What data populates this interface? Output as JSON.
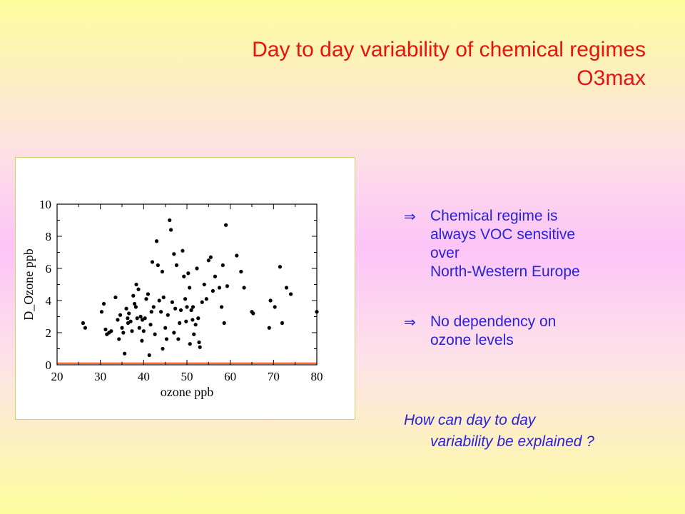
{
  "slide": {
    "title_line1": "Day to day variability of chemical regimes",
    "title_line2": "O3max",
    "bullets": [
      {
        "icon": "implies-arrow",
        "symbol": "⇒",
        "line1": "Chemical regime is",
        "lines": [
          "always VOC sensitive",
          "over",
          "North-Western Europe"
        ]
      },
      {
        "icon": "implies-arrow",
        "symbol": "⇒",
        "line1": "No dependency on",
        "lines": [
          "ozone levels"
        ]
      }
    ],
    "question_line1": "How can day to day",
    "question_line2": "variability be explained ?"
  },
  "colors": {
    "title": "#e8120f",
    "body_text": "#2a22d6",
    "reference_line": "#e8380f"
  },
  "chart_data": {
    "type": "scatter",
    "xlabel": "ozone ppb",
    "ylabel": "D_Ozone  ppb",
    "xlim": [
      20,
      80
    ],
    "ylim": [
      0,
      10
    ],
    "xticks": [
      20,
      30,
      40,
      50,
      60,
      70,
      80
    ],
    "yticks": [
      0,
      2,
      4,
      6,
      8,
      10
    ],
    "grid": false,
    "reference_line_y": 0.1,
    "points": [
      [
        26,
        2.6
      ],
      [
        26.5,
        2.3
      ],
      [
        30.3,
        3.3
      ],
      [
        30.8,
        3.8
      ],
      [
        31.2,
        2.2
      ],
      [
        31.5,
        1.9
      ],
      [
        32,
        2.0
      ],
      [
        32.5,
        2.1
      ],
      [
        33.5,
        4.2
      ],
      [
        34,
        2.8
      ],
      [
        34.3,
        1.6
      ],
      [
        34.6,
        3.1
      ],
      [
        35,
        2.3
      ],
      [
        35.3,
        2.0
      ],
      [
        35.6,
        0.7
      ],
      [
        36,
        3.5
      ],
      [
        36.3,
        2.9
      ],
      [
        36.6,
        3.2
      ],
      [
        37,
        2.7
      ],
      [
        37.3,
        2.1
      ],
      [
        37.6,
        4.3
      ],
      [
        37.9,
        3.8
      ],
      [
        38.2,
        3.6
      ],
      [
        38.5,
        2.9
      ],
      [
        38.3,
        5.0
      ],
      [
        38.8,
        4.7
      ],
      [
        39,
        2.3
      ],
      [
        39.3,
        3.0
      ],
      [
        39.6,
        1.5
      ],
      [
        40,
        2.1
      ],
      [
        40.3,
        2.9
      ],
      [
        40.6,
        4.1
      ],
      [
        41,
        4.4
      ],
      [
        41.3,
        0.6
      ],
      [
        41.6,
        2.5
      ],
      [
        42,
        6.4
      ],
      [
        42.3,
        3.6
      ],
      [
        42.6,
        1.9
      ],
      [
        43,
        7.7
      ],
      [
        43.3,
        6.2
      ],
      [
        43.6,
        4.0
      ],
      [
        44,
        3.3
      ],
      [
        44.3,
        5.8
      ],
      [
        44.6,
        4.2
      ],
      [
        45,
        2.3
      ],
      [
        45.3,
        1.6
      ],
      [
        45.6,
        3.1
      ],
      [
        46,
        9.0
      ],
      [
        46.3,
        8.4
      ],
      [
        46.6,
        3.9
      ],
      [
        47,
        6.9
      ],
      [
        47.3,
        3.5
      ],
      [
        47.6,
        6.2
      ],
      [
        48,
        1.6
      ],
      [
        48.3,
        2.6
      ],
      [
        48.6,
        3.4
      ],
      [
        49,
        7.1
      ],
      [
        49.3,
        5.5
      ],
      [
        49.6,
        4.1
      ],
      [
        50,
        3.6
      ],
      [
        50.3,
        5.7
      ],
      [
        50.6,
        4.8
      ],
      [
        51,
        3.4
      ],
      [
        51.3,
        2.8
      ],
      [
        51.6,
        1.9
      ],
      [
        52,
        2.5
      ],
      [
        52.3,
        6.0
      ],
      [
        52.6,
        2.9
      ],
      [
        53,
        1.1
      ],
      [
        53.5,
        3.9
      ],
      [
        54,
        5.0
      ],
      [
        54.5,
        4.1
      ],
      [
        55,
        6.5
      ],
      [
        55.5,
        6.7
      ],
      [
        56,
        4.6
      ],
      [
        56.5,
        5.5
      ],
      [
        57.5,
        4.8
      ],
      [
        58,
        3.6
      ],
      [
        58.3,
        6.2
      ],
      [
        58.6,
        2.6
      ],
      [
        59,
        8.7
      ],
      [
        59.3,
        4.9
      ],
      [
        61.5,
        6.8
      ],
      [
        62.5,
        5.8
      ],
      [
        63.2,
        4.8
      ],
      [
        65,
        3.3
      ],
      [
        65.3,
        3.2
      ],
      [
        69.3,
        4.0
      ],
      [
        69,
        2.3
      ],
      [
        70.3,
        3.6
      ],
      [
        71.5,
        6.1
      ],
      [
        72,
        2.6
      ],
      [
        73,
        4.8
      ],
      [
        74,
        4.4
      ],
      [
        80,
        3.3
      ],
      [
        44.4,
        1.0
      ],
      [
        50.7,
        1.3
      ],
      [
        47,
        2.0
      ],
      [
        41.8,
        3.3
      ],
      [
        36.4,
        2.6
      ],
      [
        39.7,
        2.8
      ],
      [
        49.8,
        2.7
      ],
      [
        51.4,
        3.6
      ],
      [
        52.8,
        1.4
      ]
    ]
  }
}
